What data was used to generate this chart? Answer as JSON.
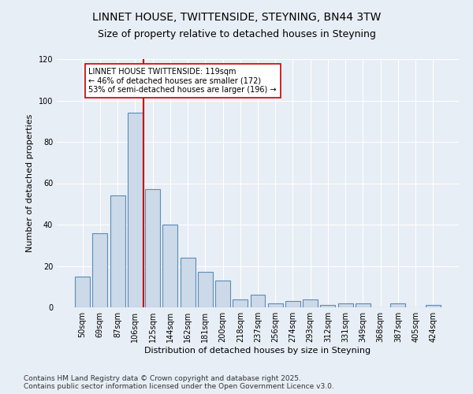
{
  "title1": "LINNET HOUSE, TWITTENSIDE, STEYNING, BN44 3TW",
  "title2": "Size of property relative to detached houses in Steyning",
  "xlabel": "Distribution of detached houses by size in Steyning",
  "ylabel": "Number of detached properties",
  "categories": [
    "50sqm",
    "69sqm",
    "87sqm",
    "106sqm",
    "125sqm",
    "144sqm",
    "162sqm",
    "181sqm",
    "200sqm",
    "218sqm",
    "237sqm",
    "256sqm",
    "274sqm",
    "293sqm",
    "312sqm",
    "331sqm",
    "349sqm",
    "368sqm",
    "387sqm",
    "405sqm",
    "424sqm"
  ],
  "values": [
    15,
    36,
    54,
    94,
    57,
    40,
    24,
    17,
    13,
    4,
    6,
    2,
    3,
    4,
    1,
    2,
    2,
    0,
    2,
    0,
    1
  ],
  "bar_color": "#ccd9e8",
  "bar_edge_color": "#5b8db8",
  "vline_x": 3.5,
  "vline_color": "#cc0000",
  "annotation_text": "LINNET HOUSE TWITTENSIDE: 119sqm\n← 46% of detached houses are smaller (172)\n53% of semi-detached houses are larger (196) →",
  "annotation_box_color": "#ffffff",
  "annotation_box_edge": "#cc0000",
  "ylim": [
    0,
    120
  ],
  "yticks": [
    0,
    20,
    40,
    60,
    80,
    100,
    120
  ],
  "background_color": "#e8eef5",
  "plot_bg_color": "#e8eef5",
  "footer_line1": "Contains HM Land Registry data © Crown copyright and database right 2025.",
  "footer_line2": "Contains public sector information licensed under the Open Government Licence v3.0.",
  "title_fontsize": 10,
  "subtitle_fontsize": 9,
  "axis_label_fontsize": 8,
  "tick_fontsize": 7,
  "annotation_fontsize": 7,
  "footer_fontsize": 6.5
}
